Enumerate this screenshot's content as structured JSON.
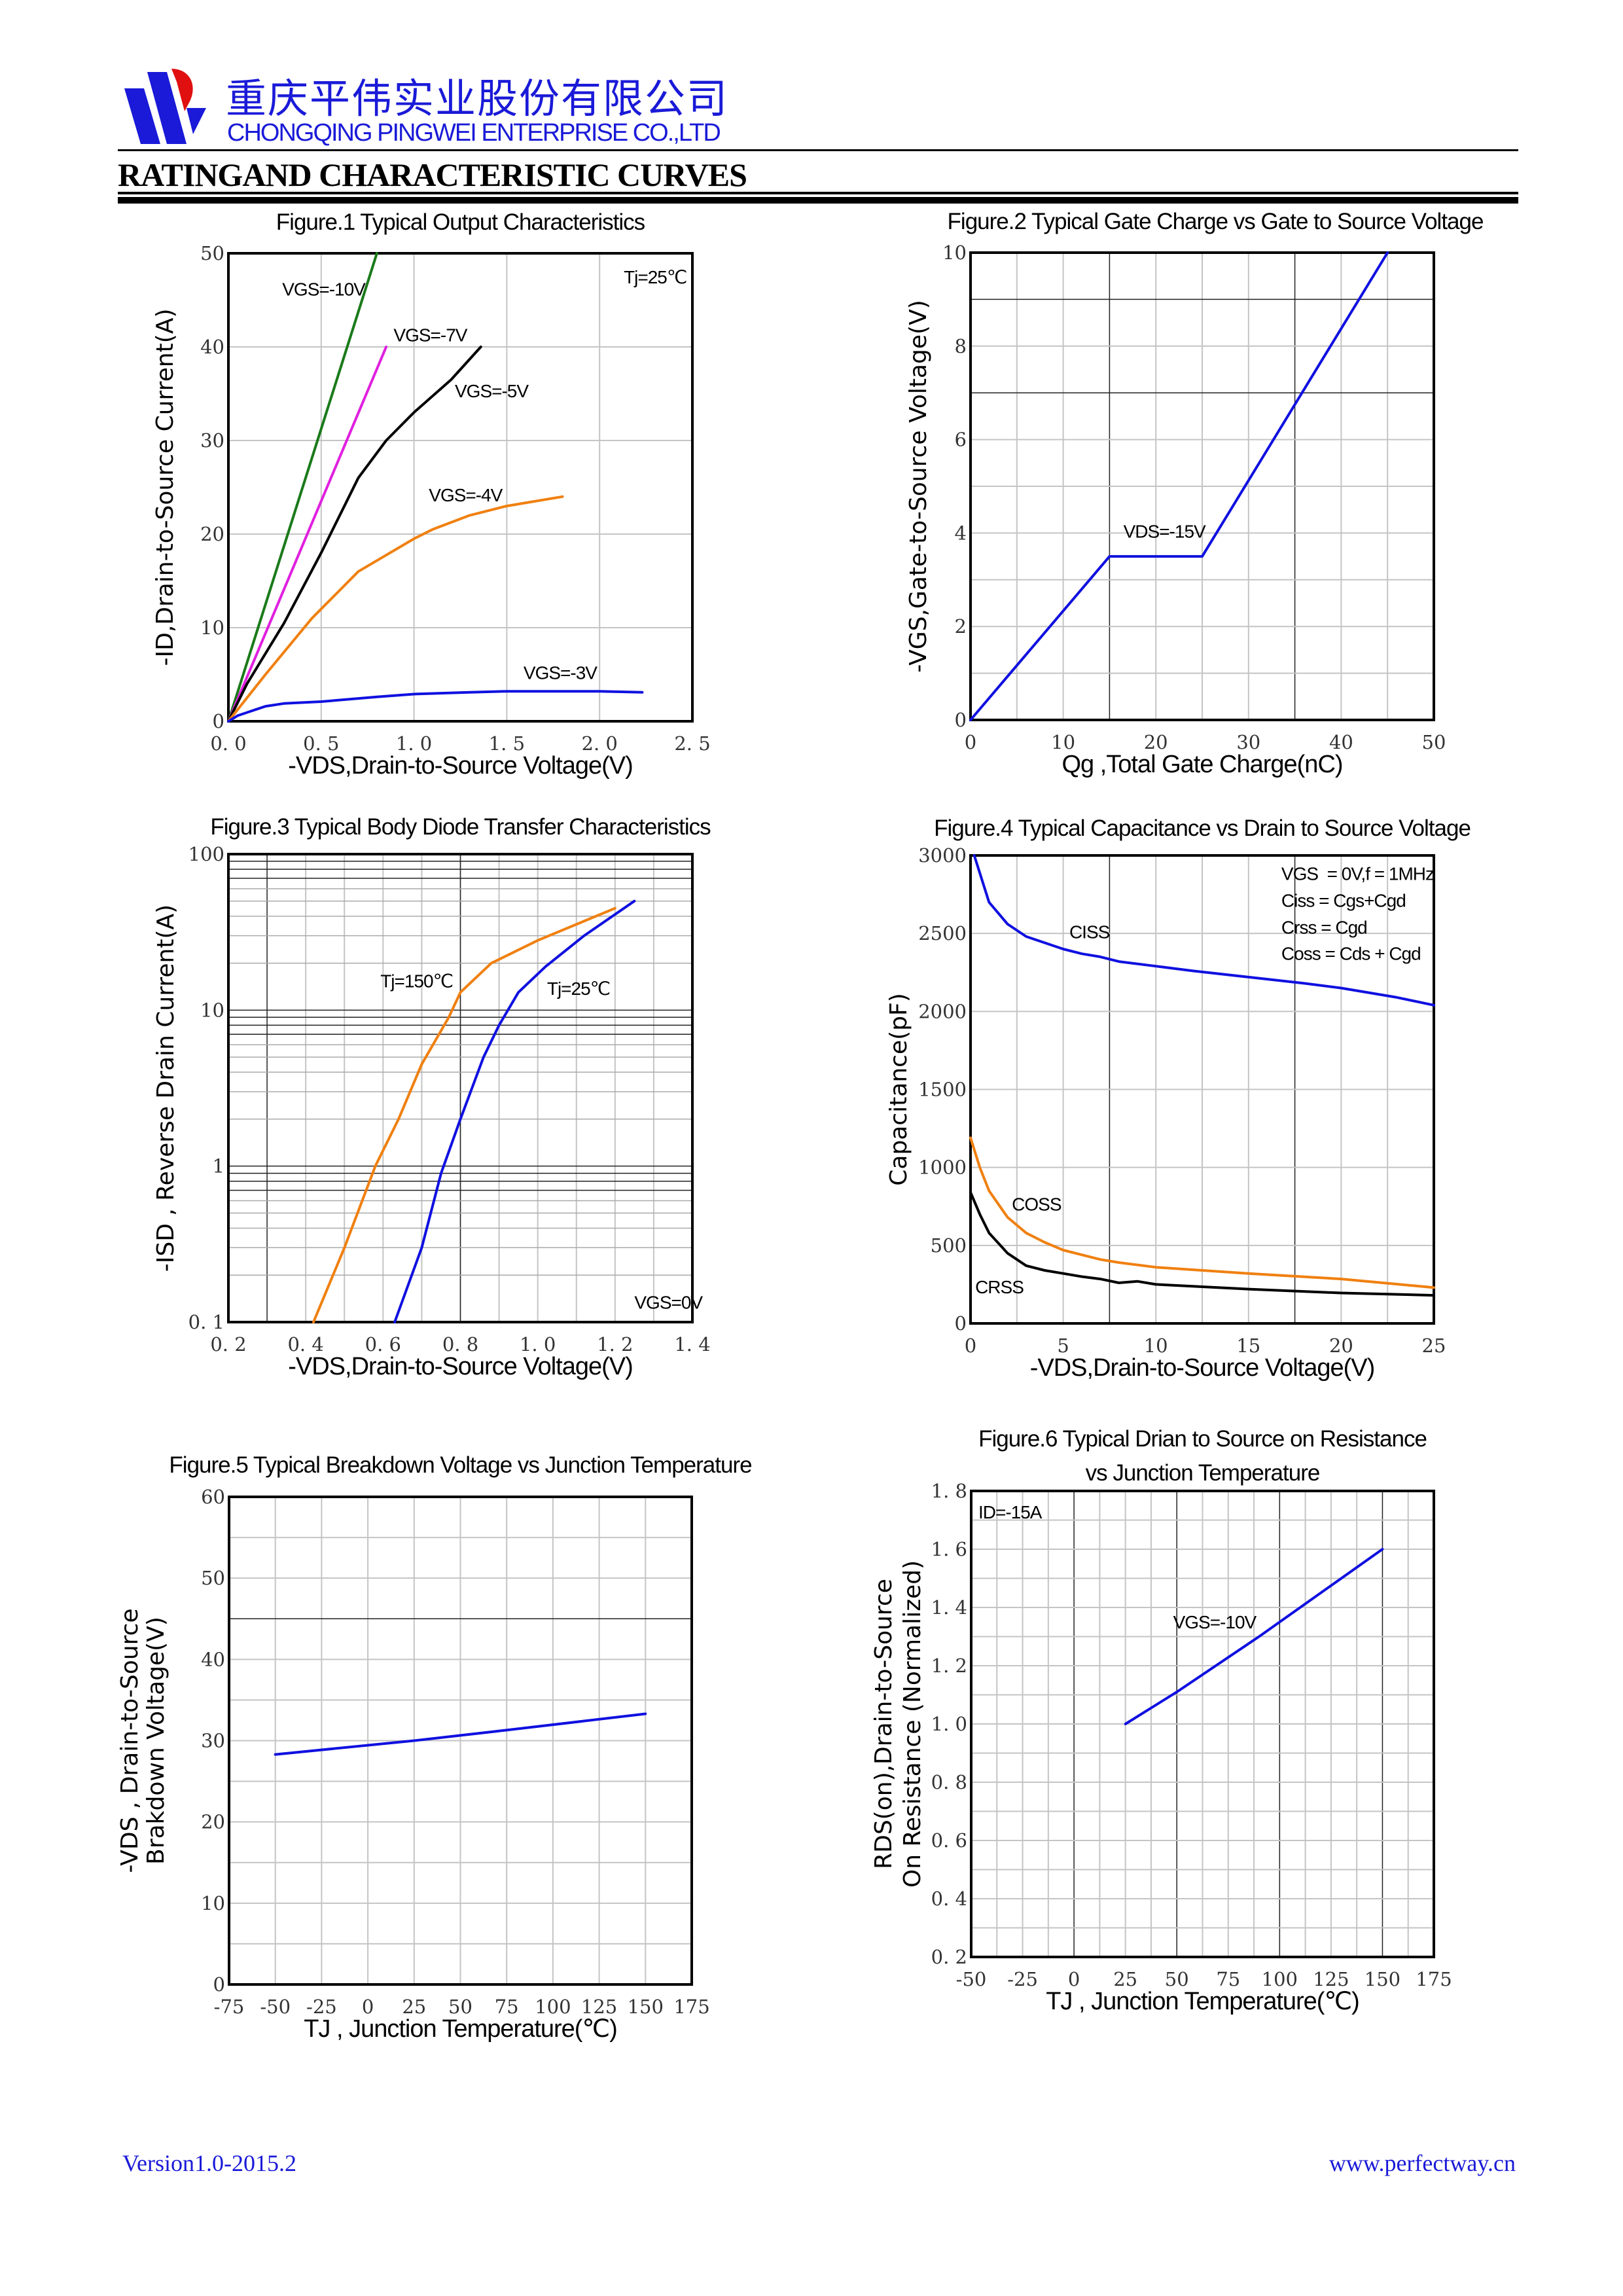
{
  "header": {
    "company_cn": "重庆平伟实业股份有限公司",
    "company_en": "CHONGQING PINGWEI ENTERPRISE CO.,LTD",
    "logo_icon": "pingwei-logo",
    "brand_blue": "#1a1ad8",
    "brand_red": "#e01010",
    "heading": "RATINGAND CHARACTERISTIC CURVES"
  },
  "footer": {
    "version": "Version1.0-2015.2",
    "website": "www.perfectway.cn"
  },
  "chart_data": [
    {
      "type": "line",
      "title": [
        "Figure.1 Typical Output Characteristics"
      ],
      "xlabel": "-VDS,Drain-to-Source Voltage(V)",
      "ylabel": [
        "-ID,Drain-to-Source Current(A)"
      ],
      "xlim": [
        0,
        2.5
      ],
      "ylim": [
        0,
        50
      ],
      "yscale": "linear",
      "grid": true,
      "x_ticks": [
        "0. 0",
        "0. 5",
        "1. 0",
        "1. 5",
        "2. 0",
        "2. 5"
      ],
      "y_ticks": [
        "0",
        "10",
        "20",
        "30",
        "40",
        "50"
      ],
      "series": [
        {
          "name": "VGS=-10V",
          "color": "#1a7a1a",
          "points": [
            [
              0,
              0
            ],
            [
              0.8,
              50
            ]
          ]
        },
        {
          "name": "VGS=-7V",
          "color": "#e020e0",
          "points": [
            [
              0,
              0
            ],
            [
              0.85,
              40
            ]
          ]
        },
        {
          "name": "VGS=-5V",
          "color": "#000000",
          "points": [
            [
              0,
              0
            ],
            [
              0.1,
              4
            ],
            [
              0.3,
              10.5
            ],
            [
              0.5,
              18
            ],
            [
              0.7,
              26
            ],
            [
              0.85,
              30
            ],
            [
              1.0,
              33
            ],
            [
              1.2,
              36.5
            ],
            [
              1.36,
              40
            ]
          ]
        },
        {
          "name": "VGS=-4V",
          "color": "#f08010",
          "points": [
            [
              0,
              0
            ],
            [
              0.2,
              5
            ],
            [
              0.45,
              11
            ],
            [
              0.7,
              16
            ],
            [
              1.0,
              19.5
            ],
            [
              1.1,
              20.5
            ],
            [
              1.3,
              22
            ],
            [
              1.5,
              23
            ],
            [
              1.8,
              24
            ]
          ]
        },
        {
          "name": "VGS=-3V",
          "color": "#1010e0",
          "points": [
            [
              0,
              0
            ],
            [
              0.05,
              0.6
            ],
            [
              0.2,
              1.6
            ],
            [
              0.3,
              1.9
            ],
            [
              0.5,
              2.1
            ],
            [
              0.8,
              2.6
            ],
            [
              1.0,
              2.9
            ],
            [
              1.3,
              3.1
            ],
            [
              1.5,
              3.2
            ],
            [
              2.0,
              3.2
            ],
            [
              2.23,
              3.1
            ]
          ]
        }
      ],
      "annotations": [
        "Tj=25℃"
      ]
    },
    {
      "type": "line",
      "title": [
        "Figure.2 Typical Gate Charge vs Gate to Source Voltage"
      ],
      "xlabel": "Qg ,Total Gate Charge(nC)",
      "ylabel": [
        "-VGS,Gate-to-Source Voltage(V)"
      ],
      "xlim": [
        0,
        50
      ],
      "ylim": [
        0,
        10
      ],
      "yscale": "linear",
      "grid": true,
      "x_ticks": [
        "0",
        "10",
        "20",
        "30",
        "40",
        "50"
      ],
      "y_ticks": [
        "0",
        "2",
        "4",
        "6",
        "8",
        "10"
      ],
      "series": [
        {
          "color": "#1010e0",
          "points": [
            [
              0,
              0
            ],
            [
              15,
              3.5
            ],
            [
              25,
              3.5
            ],
            [
              45,
              10
            ]
          ]
        }
      ],
      "annotations": [
        "VDS=-15V"
      ]
    },
    {
      "type": "line",
      "title": [
        "Figure.3 Typical Body Diode Transfer Characteristics"
      ],
      "xlabel": "-VDS,Drain-to-Source Voltage(V)",
      "ylabel": [
        "-ISD , Reverse Drain Current(A)"
      ],
      "xlim": [
        0.2,
        1.4
      ],
      "ylim": [
        0.1,
        100
      ],
      "yscale": "log",
      "grid": true,
      "x_ticks": [
        "0. 2",
        "0. 4",
        "0. 6",
        "0. 8",
        "1. 0",
        "1. 2",
        "1. 4"
      ],
      "y_ticks": [
        "0. 1",
        "1",
        "10",
        "100"
      ],
      "series": [
        {
          "name": "Tj=150℃",
          "color": "#f08010",
          "points": [
            [
              0.42,
              0.1
            ],
            [
              0.5,
              0.3
            ],
            [
              0.58,
              1
            ],
            [
              0.64,
              2
            ],
            [
              0.7,
              4.5
            ],
            [
              0.77,
              9
            ],
            [
              0.8,
              13
            ],
            [
              0.88,
              20
            ],
            [
              1.0,
              28
            ],
            [
              1.2,
              45
            ]
          ]
        },
        {
          "name": "Tj=25℃",
          "color": "#1010e0",
          "points": [
            [
              0.63,
              0.1
            ],
            [
              0.7,
              0.3
            ],
            [
              0.75,
              0.9
            ],
            [
              0.8,
              2
            ],
            [
              0.86,
              5
            ],
            [
              0.9,
              8
            ],
            [
              0.95,
              13
            ],
            [
              1.02,
              19
            ],
            [
              1.12,
              30
            ],
            [
              1.25,
              50
            ]
          ]
        }
      ],
      "annotations": [
        "VGS=0V"
      ]
    },
    {
      "type": "line",
      "title": [
        "Figure.4 Typical Capacitance vs Drain to Source Voltage"
      ],
      "xlabel": "-VDS,Drain-to-Source Voltage(V)",
      "ylabel": [
        "Capacitance(pF)"
      ],
      "xlim": [
        0,
        25
      ],
      "ylim": [
        0,
        3000
      ],
      "yscale": "linear",
      "grid": true,
      "x_ticks": [
        "0",
        "5",
        "10",
        "15",
        "20",
        "25"
      ],
      "y_ticks": [
        "0",
        "500",
        "1000",
        "1500",
        "2000",
        "2500",
        "3000"
      ],
      "series": [
        {
          "name": "CISS",
          "color": "#1010e0",
          "points": [
            [
              0.2,
              3000
            ],
            [
              1,
              2700
            ],
            [
              2,
              2560
            ],
            [
              3,
              2480
            ],
            [
              5,
              2400
            ],
            [
              6,
              2370
            ],
            [
              7,
              2350
            ],
            [
              8,
              2320
            ],
            [
              10,
              2290
            ],
            [
              12,
              2260
            ],
            [
              15,
              2220
            ],
            [
              18,
              2180
            ],
            [
              20,
              2150
            ],
            [
              23,
              2090
            ],
            [
              25,
              2040
            ]
          ]
        },
        {
          "name": "COSS",
          "color": "#f08010",
          "points": [
            [
              0,
              1190
            ],
            [
              0.5,
              1000
            ],
            [
              1,
              850
            ],
            [
              2,
              680
            ],
            [
              3,
              580
            ],
            [
              4,
              520
            ],
            [
              5,
              470
            ],
            [
              7,
              410
            ],
            [
              8,
              390
            ],
            [
              10,
              360
            ],
            [
              15,
              320
            ],
            [
              20,
              285
            ],
            [
              25,
              230
            ]
          ]
        },
        {
          "name": "CRSS",
          "color": "#000000",
          "points": [
            [
              0,
              840
            ],
            [
              0.5,
              700
            ],
            [
              1,
              580
            ],
            [
              2,
              450
            ],
            [
              3,
              370
            ],
            [
              4,
              340
            ],
            [
              5,
              320
            ],
            [
              6,
              300
            ],
            [
              7,
              285
            ],
            [
              8,
              260
            ],
            [
              9,
              270
            ],
            [
              10,
              250
            ],
            [
              15,
              220
            ],
            [
              20,
              195
            ],
            [
              25,
              180
            ]
          ]
        }
      ],
      "annotations": [
        "VGS  = 0V,f = 1MHz",
        "Ciss = Cgs+Cgd",
        "Crss = Cgd",
        "Coss = Cds + Cgd"
      ]
    },
    {
      "type": "line",
      "title": [
        "Figure.5 Typical Breakdown Voltage vs Junction Temperature"
      ],
      "xlabel": "TJ , Junction Temperature(℃)",
      "ylabel": [
        "-VDS , Drain-to-Source",
        "Brakdown Voltage(V)"
      ],
      "xlim": [
        -75,
        175
      ],
      "ylim": [
        0,
        60
      ],
      "yscale": "linear",
      "grid": true,
      "x_ticks": [
        "-75",
        "-50",
        "-25",
        "0",
        "25",
        "50",
        "75",
        "100",
        "125",
        "150",
        "175"
      ],
      "y_ticks": [
        "0",
        "10",
        "20",
        "30",
        "40",
        "50",
        "60"
      ],
      "series": [
        {
          "color": "#1010e0",
          "points": [
            [
              -50,
              28.3
            ],
            [
              25,
              30
            ],
            [
              75,
              31.3
            ],
            [
              150,
              33.3
            ]
          ]
        }
      ],
      "annotations": []
    },
    {
      "type": "line",
      "title": [
        "Figure.6 Typical Drian to Source on Resistance",
        "vs Junction Temperature"
      ],
      "xlabel": "TJ , Junction Temperature(℃)",
      "ylabel": [
        "RDS(on),Drain-to-Source",
        "On Resistance (Normalized)"
      ],
      "xlim": [
        -50,
        175
      ],
      "ylim": [
        0.2,
        1.8
      ],
      "yscale": "linear",
      "grid": true,
      "x_ticks": [
        "-50",
        "-25",
        "0",
        "25",
        "50",
        "75",
        "100",
        "125",
        "150",
        "175"
      ],
      "y_ticks": [
        "0. 2",
        "0. 4",
        "0. 6",
        "0. 8",
        "1. 0",
        "1. 2",
        "1. 4",
        "1. 6",
        "1. 8"
      ],
      "series": [
        {
          "color": "#1010e0",
          "points": [
            [
              25,
              1.0
            ],
            [
              50,
              1.11
            ],
            [
              90,
              1.3
            ],
            [
              150,
              1.6
            ]
          ]
        }
      ],
      "annotations": [
        "ID=-15A",
        "VGS=-10V"
      ]
    }
  ]
}
